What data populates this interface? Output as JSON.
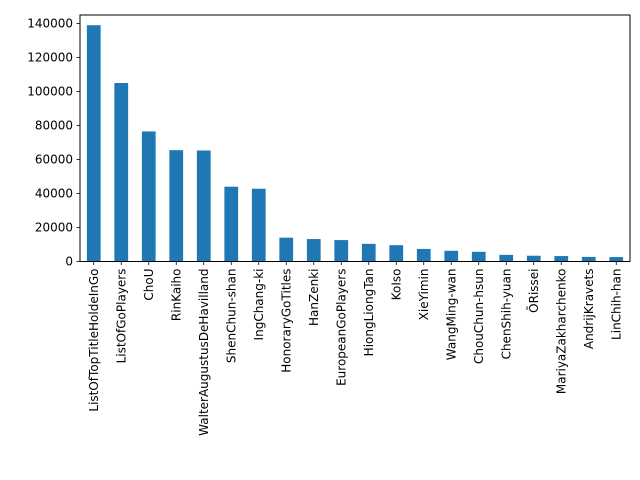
{
  "chart_data": {
    "type": "bar",
    "title": "",
    "xlabel": "",
    "ylabel": "",
    "categories": [
      "ListOfTopTitleHoldeInGo",
      "ListOfGoPlayers",
      "ChoU",
      "RinKaiho",
      "WalterAugustusDeHavilland",
      "ShenChun-shan",
      "IngChang-ki",
      "HonoraryGoTitles",
      "HanZenki",
      "EuropeanGoPlayers",
      "HiongLiongTan",
      "KoIso",
      "XieYimin",
      "WangMing-wan",
      "ChouChun-hsun",
      "ChenShih-yuan",
      "ŌRissei",
      "MariyaZakharchenko",
      "AndrijKravets",
      "LinChih-han"
    ],
    "values": [
      139000,
      105000,
      76500,
      65500,
      65300,
      44000,
      42800,
      14000,
      13200,
      12600,
      10400,
      9600,
      7400,
      6300,
      5700,
      3900,
      3400,
      3200,
      2700,
      2600
    ],
    "ylim": [
      0,
      145000
    ],
    "yticks": [
      0,
      20000,
      40000,
      60000,
      80000,
      100000,
      120000,
      140000
    ],
    "bar_color": "#1f77b4",
    "grid": false,
    "legend": "none"
  }
}
